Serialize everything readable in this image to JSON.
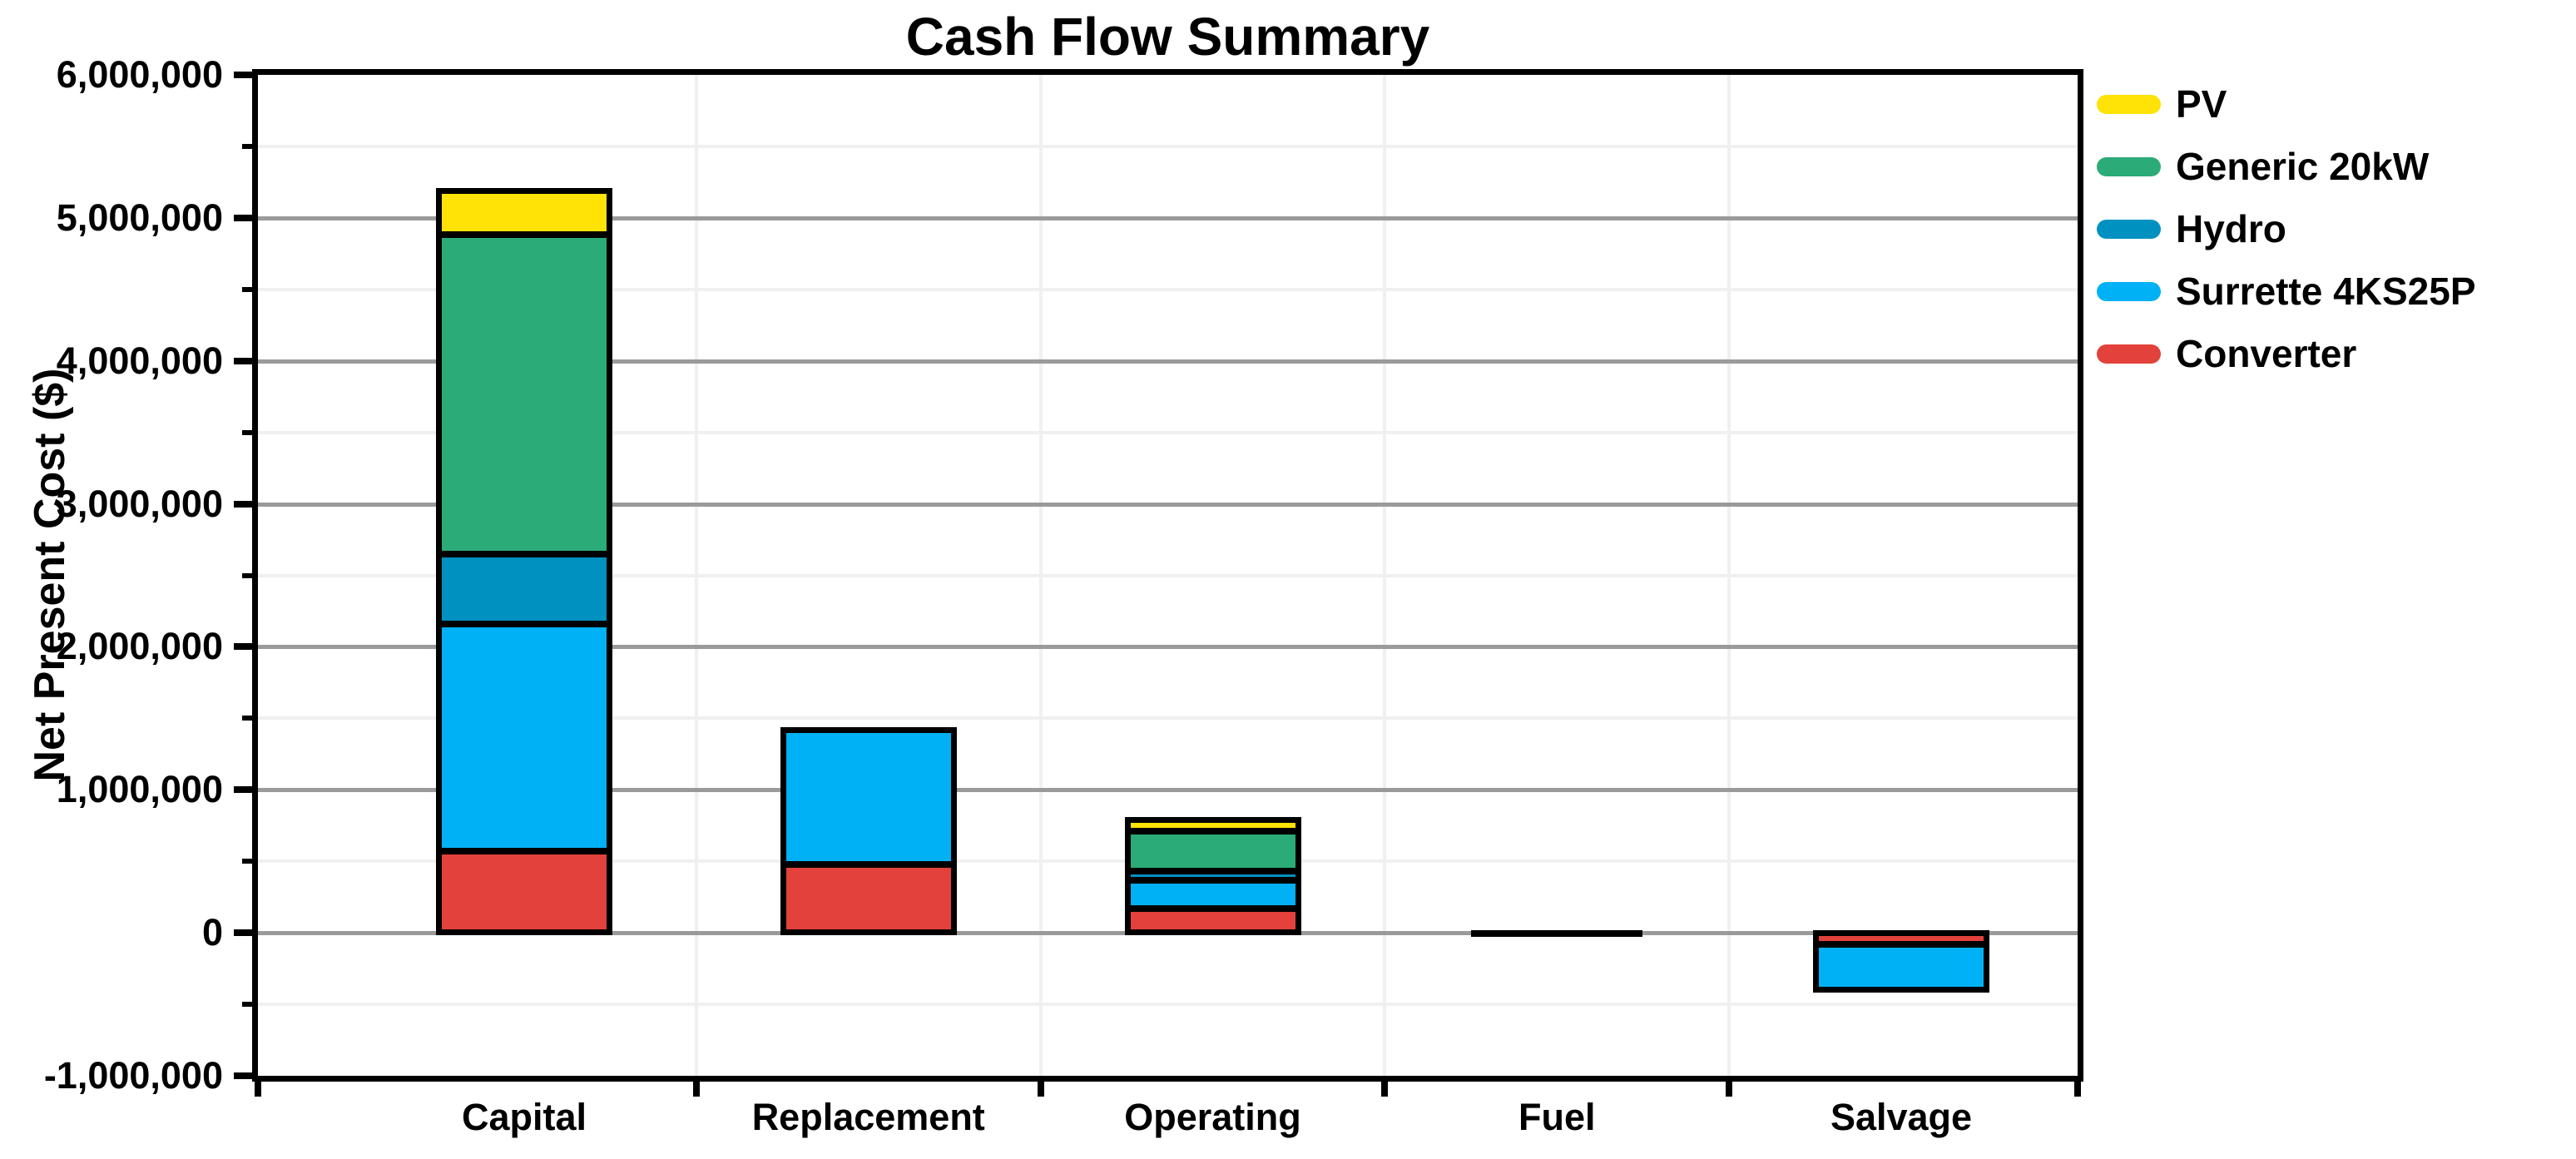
{
  "chart_data": {
    "type": "bar",
    "stacked": true,
    "title": "Cash Flow Summary",
    "xlabel": "",
    "ylabel": "Net Present Cost ($)",
    "ylim": [
      -1000000,
      6000000
    ],
    "y_major_step": 1000000,
    "y_minor_step": 500000,
    "grid": true,
    "legend_position": "top-right-outside",
    "categories": [
      "Capital",
      "Replacement",
      "Operating",
      "Fuel",
      "Salvage"
    ],
    "series": [
      {
        "name": "PV",
        "color": "#FFE206",
        "values": [
          310000,
          0,
          80000,
          0,
          0
        ]
      },
      {
        "name": "Generic 20kW",
        "color": "#2BAB78",
        "values": [
          2230000,
          0,
          280000,
          0,
          0
        ]
      },
      {
        "name": "Hydro",
        "color": "#0191C1",
        "values": [
          490000,
          0,
          60000,
          0,
          0
        ]
      },
      {
        "name": "Surrette 4KS25P",
        "color": "#00B1F5",
        "values": [
          1590000,
          940000,
          200000,
          0,
          -320000
        ]
      },
      {
        "name": "Converter",
        "color": "#E2423B",
        "values": [
          570000,
          480000,
          170000,
          0,
          -80000
        ]
      }
    ],
    "category_totals": [
      5190000,
      1420000,
      790000,
      0,
      -400000
    ],
    "y_tick_labels": [
      "6,000,000",
      "5,000,000",
      "4,000,000",
      "3,000,000",
      "2,000,000",
      "1,000,000",
      "0",
      "-1,000,000"
    ],
    "colors": {
      "axis_frame": "#000000",
      "major_gridline": "#9a9a9a",
      "minor_gridline": "#f0f0f0",
      "background": "#ffffff"
    }
  }
}
